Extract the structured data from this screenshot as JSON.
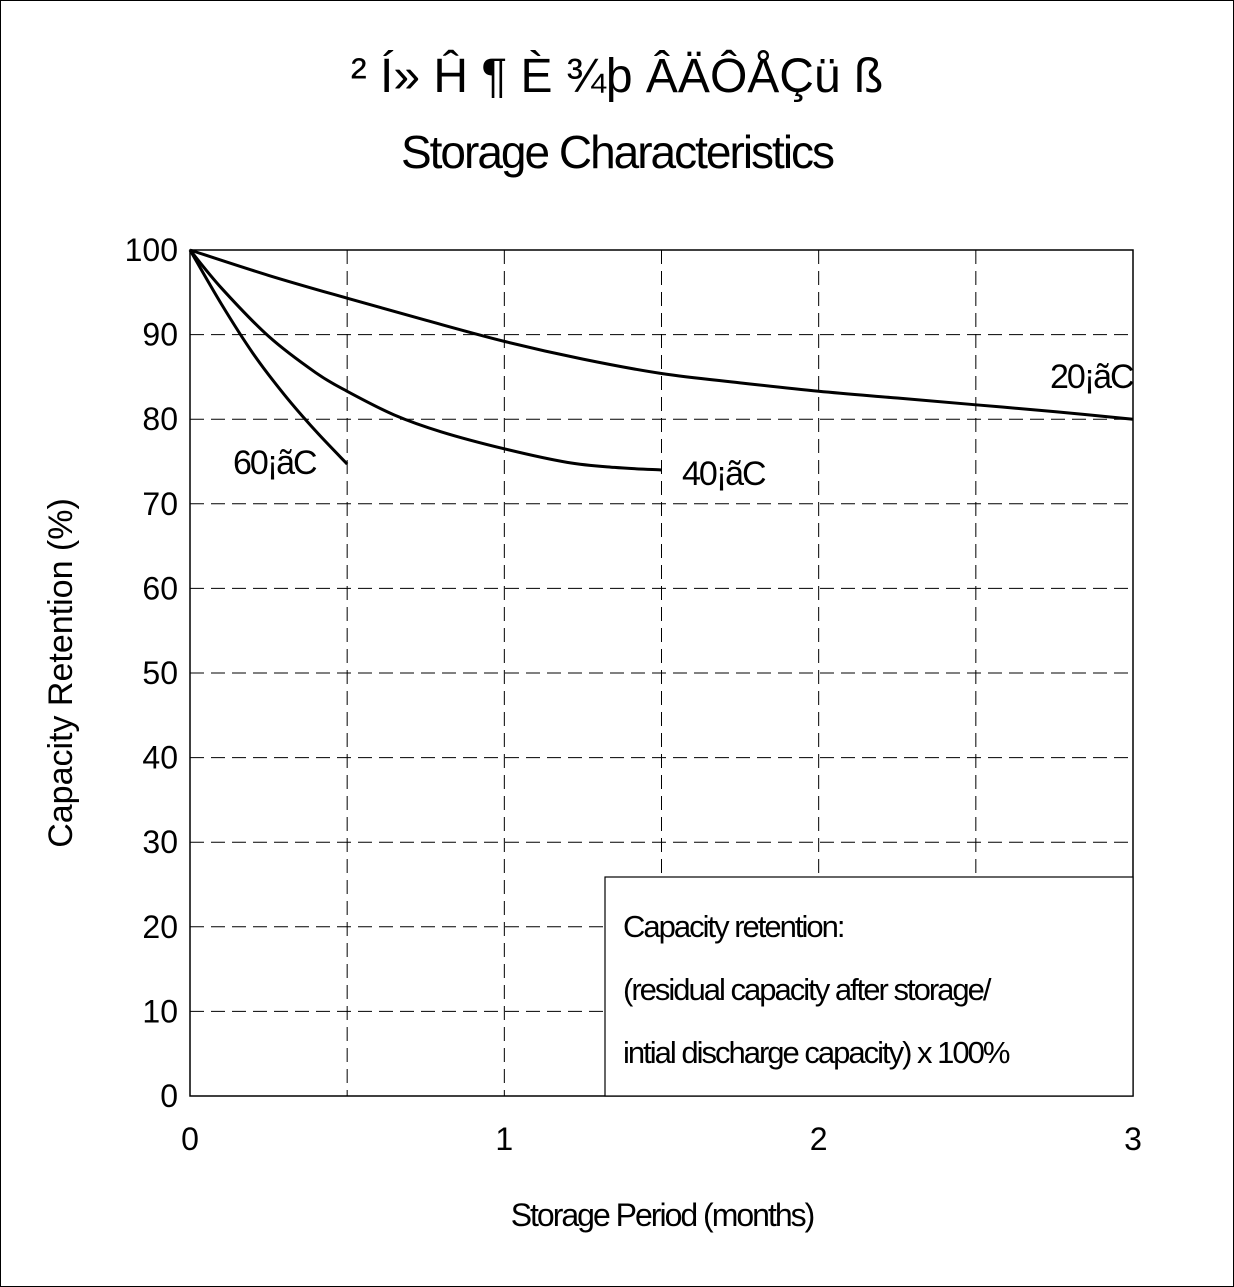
{
  "chart_data": {
    "type": "line",
    "title_garbled": "² Í» Ĥ ¶ È ¾þ ÂÄÔÅÇü ß",
    "title": "Storage Characteristics",
    "xlabel": "Storage Period (months)",
    "ylabel": "Capacity Retention (%)",
    "xlim": [
      0,
      3
    ],
    "ylim": [
      0,
      100
    ],
    "xticks": [
      "0",
      "1",
      "2",
      "3"
    ],
    "yticks": [
      "0",
      "10",
      "20",
      "30",
      "40",
      "50",
      "60",
      "70",
      "80",
      "90",
      "100"
    ],
    "grid": "dashed",
    "series": [
      {
        "name": "20¡ãC",
        "x": [
          0,
          0.25,
          0.5,
          0.75,
          1.0,
          1.25,
          1.5,
          1.75,
          2.0,
          2.25,
          2.5,
          2.75,
          3.0
        ],
        "y": [
          100,
          97,
          94.3,
          91.7,
          89.2,
          87.1,
          85.4,
          84.3,
          83.3,
          82.5,
          81.7,
          80.9,
          80
        ]
      },
      {
        "name": "40¡ãC",
        "x": [
          0,
          0.1,
          0.25,
          0.4,
          0.5,
          0.65,
          0.8,
          1.0,
          1.2,
          1.35,
          1.5
        ],
        "y": [
          100,
          95.5,
          89.8,
          85.5,
          83.3,
          80.5,
          78.5,
          76.5,
          74.9,
          74.3,
          74
        ]
      },
      {
        "name": "60¡ãC",
        "x": [
          0,
          0.1,
          0.2,
          0.3,
          0.4,
          0.5
        ],
        "y": [
          100,
          93.6,
          87.8,
          82.9,
          78.6,
          74.7
        ]
      }
    ],
    "note_lines": [
      "Capacity retention:",
      "(residual capacity after storage/",
      "intial discharge capacity) x 100%"
    ]
  }
}
